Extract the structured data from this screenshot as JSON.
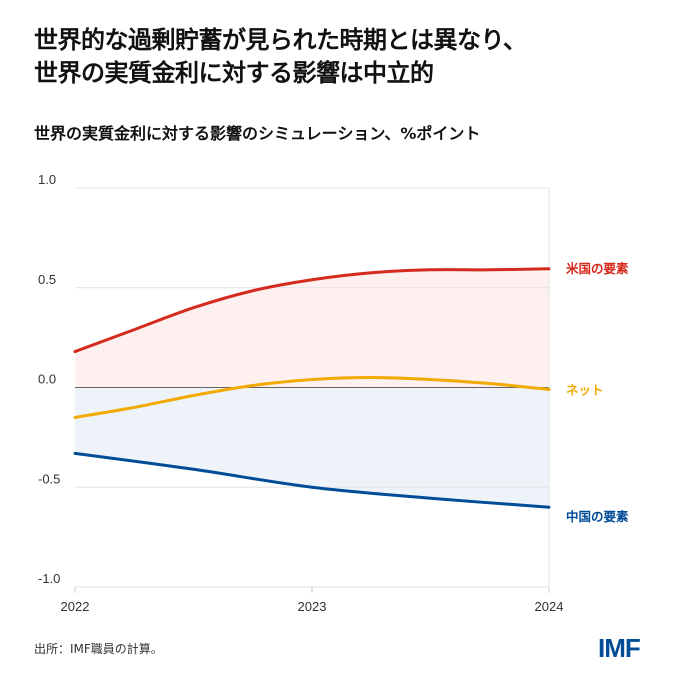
{
  "title_line1": "世界的な過剰貯蓄が見られた時期とは異なり、",
  "title_line2": "世界の実質金利に対する影響は中立的",
  "subtitle": "世界の実質金利に対する影響のシミュレーション、%ポイント",
  "source": "出所：IMF職員の計算。",
  "logo": "IMF",
  "chart_data": {
    "type": "line",
    "title": "世界の実質金利に対する影響のシミュレーション、%ポイント",
    "xlabel": "",
    "ylabel": "",
    "xlim": [
      2022,
      2024
    ],
    "ylim": [
      -1.0,
      1.0
    ],
    "x_ticks": [
      "2022",
      "2023",
      "2024"
    ],
    "y_ticks": [
      "1.0",
      "0.5",
      "0.0",
      "-0.5",
      "-1.0"
    ],
    "grid": true,
    "series": [
      {
        "name": "米国の要素",
        "color": "#d52b1e",
        "fill": "#fdf0ef",
        "x": [
          2022,
          2022.25,
          2022.5,
          2022.75,
          2023,
          2023.25,
          2023.5,
          2023.75,
          2024
        ],
        "values": [
          0.18,
          0.29,
          0.4,
          0.485,
          0.54,
          0.575,
          0.59,
          0.59,
          0.595
        ]
      },
      {
        "name": "ネット",
        "color": "#f2a900",
        "fill": null,
        "x": [
          2022,
          2022.25,
          2022.5,
          2022.75,
          2023,
          2023.25,
          2023.5,
          2023.75,
          2024
        ],
        "values": [
          -0.15,
          -0.1,
          -0.04,
          0.01,
          0.04,
          0.05,
          0.04,
          0.02,
          -0.01
        ]
      },
      {
        "name": "中国の要素",
        "color": "#004c97",
        "fill": "#eef3f9",
        "x": [
          2022,
          2022.5,
          2023,
          2023.5,
          2024
        ],
        "values": [
          -0.33,
          -0.41,
          -0.5,
          -0.555,
          -0.6
        ]
      }
    ]
  }
}
